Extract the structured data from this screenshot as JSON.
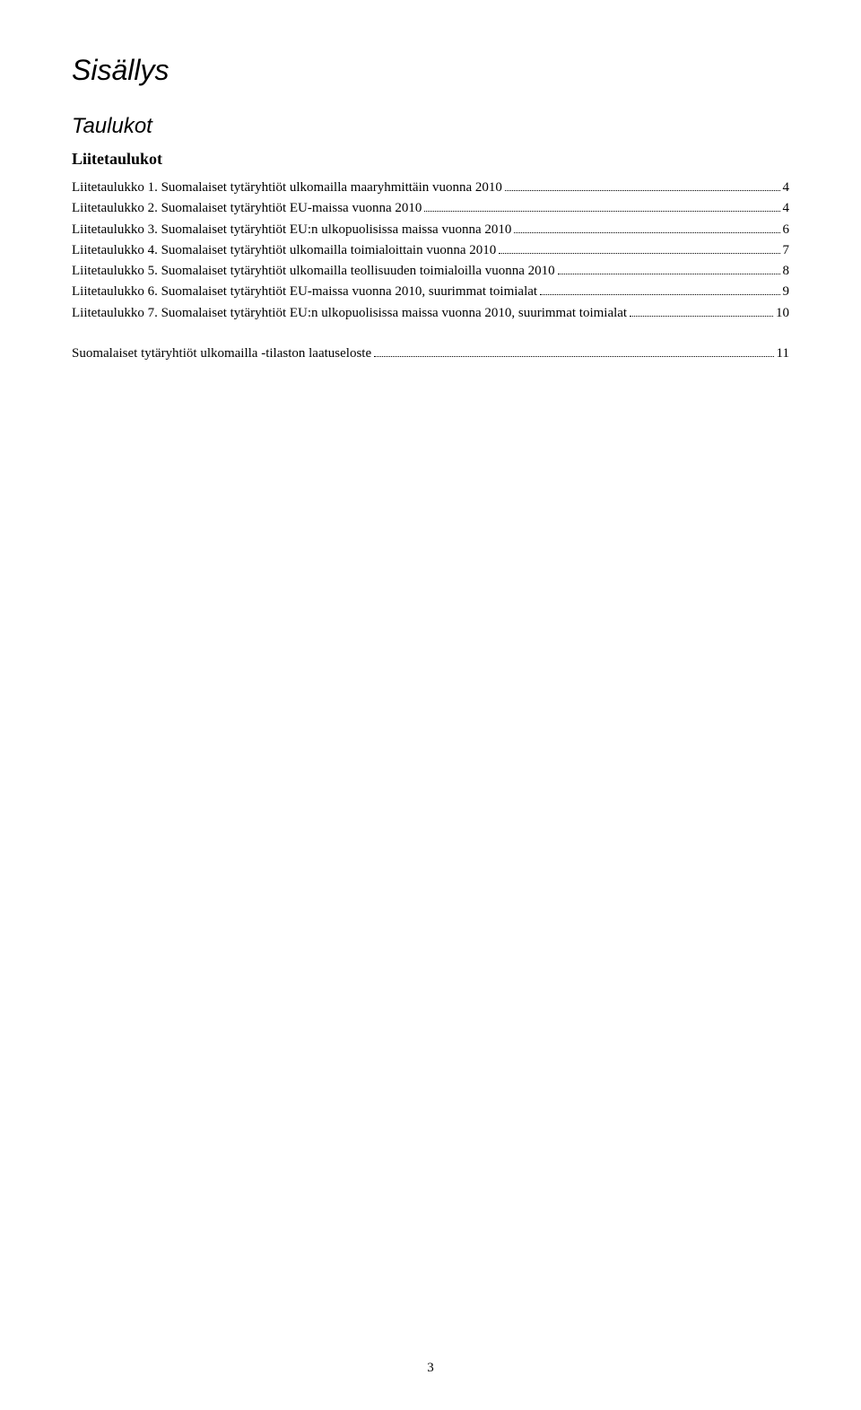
{
  "title": "Sisällys",
  "section1": {
    "heading": "Taulukot",
    "subheading": "Liitetaulukot",
    "entries": [
      {
        "label": "Liitetaulukko 1. Suomalaiset tytäryhtiöt ulkomailla maaryhmittäin vuonna 2010",
        "page": "4"
      },
      {
        "label": "Liitetaulukko 2. Suomalaiset tytäryhtiöt EU-maissa vuonna 2010",
        "page": "4"
      },
      {
        "label": "Liitetaulukko 3. Suomalaiset tytäryhtiöt EU:n ulkopuolisissa maissa vuonna 2010",
        "page": "6"
      },
      {
        "label": "Liitetaulukko 4. Suomalaiset tytäryhtiöt ulkomailla toimialoittain vuonna 2010",
        "page": "7"
      },
      {
        "label": "Liitetaulukko 5. Suomalaiset tytäryhtiöt ulkomailla teollisuuden toimialoilla vuonna 2010",
        "page": "8"
      },
      {
        "label": "Liitetaulukko 6. Suomalaiset tytäryhtiöt EU-maissa vuonna 2010, suurimmat toimialat",
        "page": "9"
      },
      {
        "label": "Liitetaulukko 7. Suomalaiset tytäryhtiöt EU:n ulkopuolisissa maissa vuonna 2010, suurimmat toimialat",
        "page": "10"
      }
    ]
  },
  "standalone": {
    "label": "Suomalaiset tytäryhtiöt ulkomailla -tilaston laatuseloste",
    "page": "11"
  },
  "pageNumber": "3"
}
